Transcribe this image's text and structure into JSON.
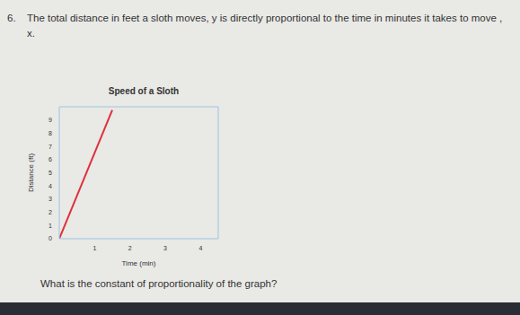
{
  "question_number": "6.",
  "problem": "The total distance in feet a sloth moves, y is directly proportional to the time in minutes it takes to move , x.",
  "question": "What is the constant of proportionality of the graph?",
  "chart_data": {
    "type": "line",
    "title": "Speed of a Sloth",
    "x_label": "Time (min)",
    "y_label": "Distance (ft)",
    "x": [
      0,
      1.5
    ],
    "values": [
      0,
      9.75
    ],
    "color": "#e0303a",
    "xlim": [
      0,
      4.5
    ],
    "ylim": [
      0,
      10
    ],
    "xticks": [
      1,
      2,
      3,
      4
    ],
    "yticks": [
      0,
      1,
      2,
      3,
      4,
      5,
      6,
      7,
      8,
      9
    ],
    "grid": false
  }
}
